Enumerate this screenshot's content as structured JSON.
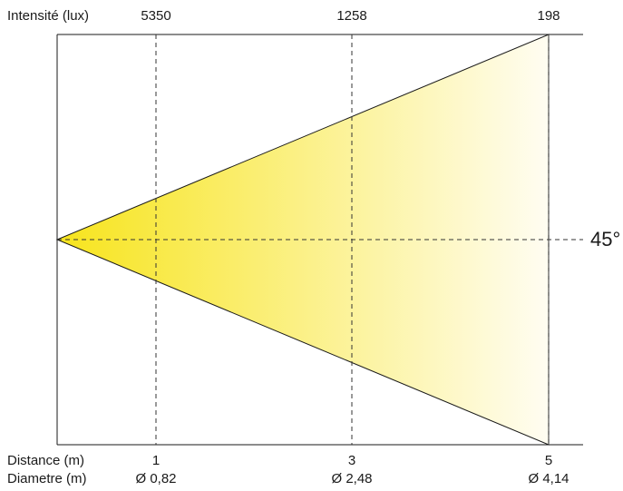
{
  "header": {
    "intensity_label": "Intensité (lux)"
  },
  "footer": {
    "distance_label": "Distance (m)",
    "diameter_label": "Diametre (m)"
  },
  "beam": {
    "angle_label": "45°",
    "colors": {
      "near": "#f7e41c",
      "far": "#fffdf2",
      "line": "#1a1a1a"
    }
  },
  "points": [
    {
      "distance": "1",
      "intensity": "5350",
      "diameter": "Ø 0,82"
    },
    {
      "distance": "3",
      "intensity": "1258",
      "diameter": "Ø 2,48"
    },
    {
      "distance": "5",
      "intensity": "198",
      "diameter": "Ø 4,14"
    }
  ]
}
